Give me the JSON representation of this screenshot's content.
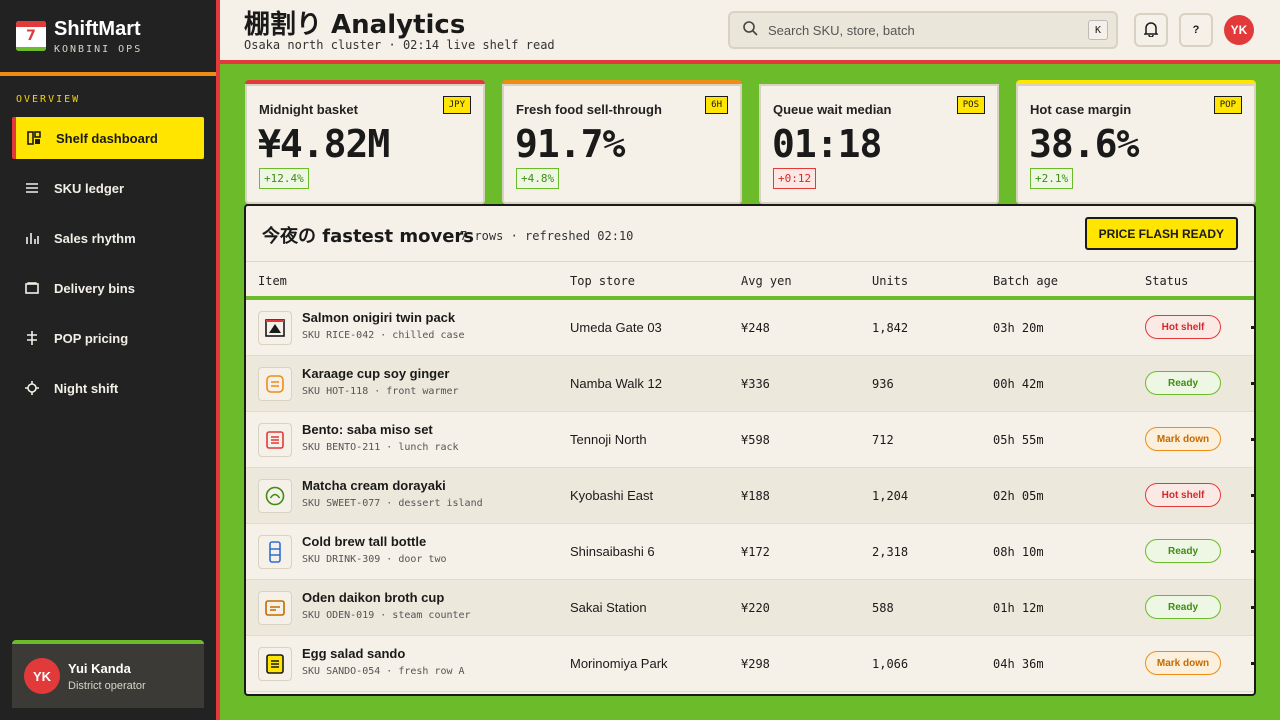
{
  "brand": {
    "logo_number": "7",
    "name": "ShiftMart",
    "subtitle": "KONBINI OPS"
  },
  "sidebar": {
    "section_label": "OVERVIEW",
    "items": [
      {
        "label": "Shelf dashboard",
        "icon": "dashboard-icon",
        "active": true
      },
      {
        "label": "SKU ledger",
        "icon": "list-icon",
        "active": false
      },
      {
        "label": "Sales rhythm",
        "icon": "bar-chart-icon",
        "active": false
      },
      {
        "label": "Delivery bins",
        "icon": "bin-icon",
        "active": false
      },
      {
        "label": "POP pricing",
        "icon": "price-tag-icon",
        "active": false
      },
      {
        "label": "Night shift",
        "icon": "crosshair-icon",
        "active": false
      }
    ]
  },
  "user": {
    "initials": "YK",
    "name": "Yui Kanda",
    "role": "District operator"
  },
  "header": {
    "title": "棚割り Analytics",
    "subtitle": "Osaka north cluster · 02:14 live shelf read",
    "search_placeholder": "Search SKU, store, batch",
    "search_shortcut": "K",
    "help_label": "?",
    "avatar_initials": "YK"
  },
  "kpis": [
    {
      "label": "Midnight basket",
      "tag": "JPY",
      "value": "¥4.82M",
      "delta": "+12.4%",
      "trend": "up",
      "accent": "#e23a3a"
    },
    {
      "label": "Fresh food sell-through",
      "tag": "6H",
      "value": "91.7%",
      "delta": "+4.8%",
      "trend": "up",
      "accent": "#ef8c16"
    },
    {
      "label": "Queue wait median",
      "tag": "POS",
      "value": "01:18",
      "delta": "+0:12",
      "trend": "down",
      "accent": "#6cbb2a"
    },
    {
      "label": "Hot case margin",
      "tag": "POP",
      "value": "38.6%",
      "delta": "+2.1%",
      "trend": "up",
      "accent": "#ffe500"
    }
  ],
  "table": {
    "title": "今夜の fastest movers",
    "meta": "7 rows · refreshed 02:10",
    "action_label": "PRICE FLASH READY",
    "columns": [
      "Item",
      "Top store",
      "Avg yen",
      "Units",
      "Batch age",
      "Status"
    ],
    "rows": [
      {
        "name": "Salmon onigiri twin pack",
        "sku": "SKU RICE-042 · chilled case",
        "store": "Umeda Gate 03",
        "avg": "¥248",
        "units": "1,842",
        "age": "03h 20m",
        "status": "Hot shelf",
        "status_type": "hot",
        "icon": "onigiri-icon",
        "icon_color": "#1a1a1a"
      },
      {
        "name": "Karaage cup soy ginger",
        "sku": "SKU HOT-118 · front warmer",
        "store": "Namba Walk 12",
        "avg": "¥336",
        "units": "936",
        "age": "00h 42m",
        "status": "Ready",
        "status_type": "ready",
        "icon": "cup-icon",
        "icon_color": "#ef8c16"
      },
      {
        "name": "Bento: saba miso set",
        "sku": "SKU BENTO-211 · lunch rack",
        "store": "Tennoji North",
        "avg": "¥598",
        "units": "712",
        "age": "05h 55m",
        "status": "Mark down",
        "status_type": "mark",
        "icon": "bento-icon",
        "icon_color": "#e23a3a"
      },
      {
        "name": "Matcha cream dorayaki",
        "sku": "SKU SWEET-077 · dessert island",
        "store": "Kyobashi East",
        "avg": "¥188",
        "units": "1,204",
        "age": "02h 05m",
        "status": "Hot shelf",
        "status_type": "hot",
        "icon": "dorayaki-icon",
        "icon_color": "#3f8d13"
      },
      {
        "name": "Cold brew tall bottle",
        "sku": "SKU DRINK-309 · door two",
        "store": "Shinsaibashi 6",
        "avg": "¥172",
        "units": "2,318",
        "age": "08h 10m",
        "status": "Ready",
        "status_type": "ready",
        "icon": "bottle-icon",
        "icon_color": "#2f6fd0"
      },
      {
        "name": "Oden daikon broth cup",
        "sku": "SKU ODEN-019 · steam counter",
        "store": "Sakai Station",
        "avg": "¥220",
        "units": "588",
        "age": "01h 12m",
        "status": "Ready",
        "status_type": "ready",
        "icon": "oden-icon",
        "icon_color": "#c56a00"
      },
      {
        "name": "Egg salad sando",
        "sku": "SKU SANDO-054 · fresh row A",
        "store": "Morinomiya Park",
        "avg": "¥298",
        "units": "1,066",
        "age": "04h 36m",
        "status": "Mark down",
        "status_type": "mark",
        "icon": "sandwich-icon",
        "icon_color": "#1a1a1a"
      }
    ]
  }
}
